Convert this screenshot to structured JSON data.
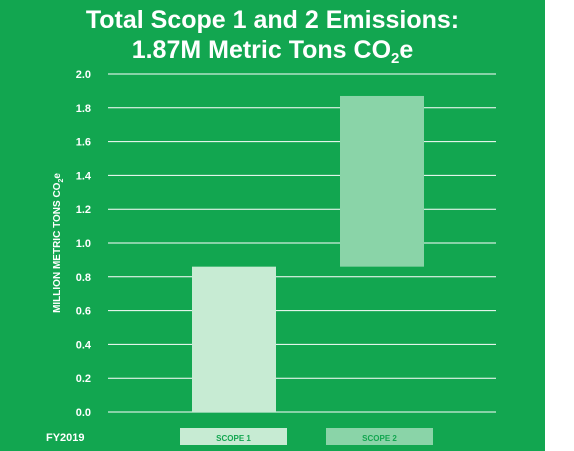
{
  "chart_data": {
    "type": "bar",
    "subtype": "waterfall",
    "title_line1": "Total Scope 1 and 2 Emissions:",
    "title_line2_prefix": "1.87M Metric Tons CO",
    "title_line2_sub": "2",
    "title_line2_suffix": "e",
    "ylabel": "MILLION METRIC TONS CO2e",
    "ylabel_prefix": "MILLION METRIC TONS CO",
    "ylabel_sub": "2",
    "ylabel_suffix": "e",
    "ylim": [
      0,
      2.0
    ],
    "yticks": [
      "0.0",
      "0.2",
      "0.4",
      "0.6",
      "0.8",
      "1.0",
      "1.2",
      "1.4",
      "1.6",
      "1.8",
      "2.0"
    ],
    "grid": true,
    "xlabel": "FY2019",
    "series": [
      {
        "name": "SCOPE 1",
        "start": 0.0,
        "end": 0.86,
        "color": "#c7ebd3"
      },
      {
        "name": "SCOPE 2",
        "start": 0.86,
        "end": 1.87,
        "color": "#8ad4a8"
      }
    ],
    "legend_position": "bottom"
  },
  "colors": {
    "background": "#12a650",
    "text": "#ffffff",
    "grid": "#ffffff"
  }
}
